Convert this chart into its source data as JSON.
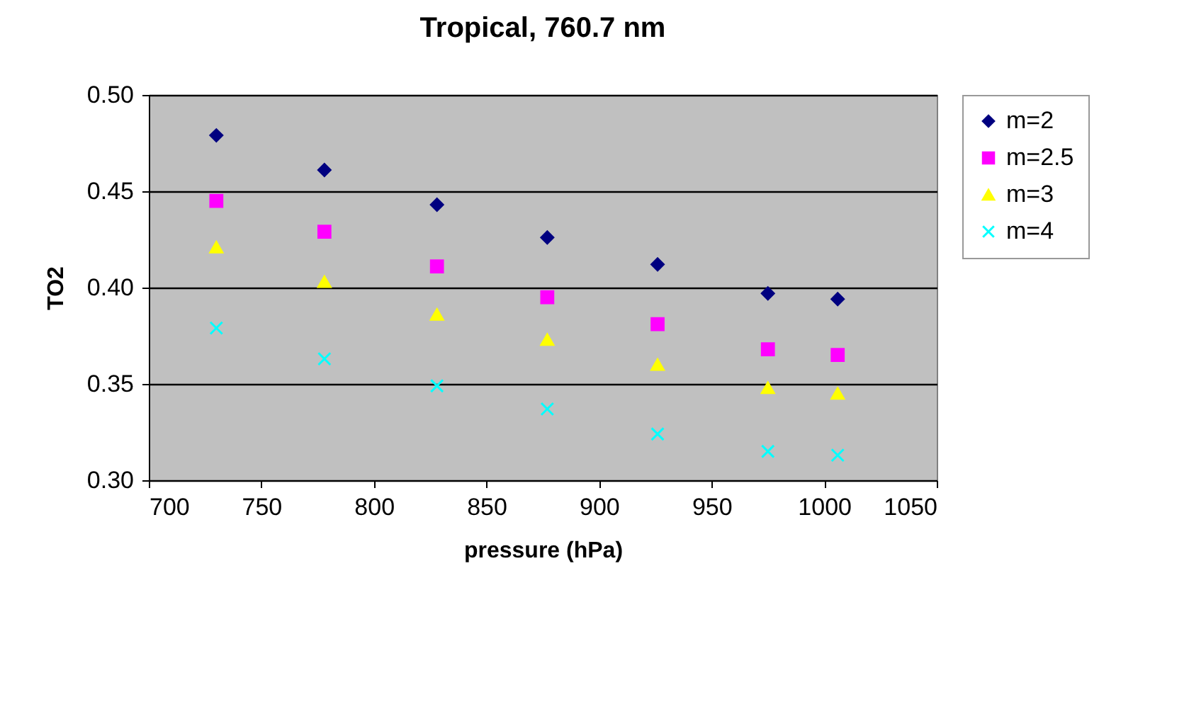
{
  "chart_data": {
    "type": "scatter",
    "title": "Tropical, 760.7 nm",
    "xlabel": "pressure (hPa)",
    "ylabel": "TO2",
    "x": [
      730,
      778,
      828,
      877,
      926,
      975,
      1006
    ],
    "series": [
      {
        "name": "m=2",
        "color": "#000080",
        "marker": "diamond",
        "values": [
          0.479,
          0.461,
          0.443,
          0.426,
          0.412,
          0.397,
          0.394
        ]
      },
      {
        "name": "m=2.5",
        "color": "#ff00ff",
        "marker": "square",
        "values": [
          0.445,
          0.429,
          0.411,
          0.395,
          0.381,
          0.368,
          0.365
        ]
      },
      {
        "name": "m=3",
        "color": "#ffff00",
        "marker": "triangle",
        "values": [
          0.421,
          0.403,
          0.386,
          0.373,
          0.36,
          0.348,
          0.345
        ]
      },
      {
        "name": "m=4",
        "color": "#00ffff",
        "marker": "cross",
        "values": [
          0.379,
          0.363,
          0.349,
          0.337,
          0.324,
          0.315,
          0.313
        ]
      }
    ],
    "xlim": [
      700,
      1050
    ],
    "xticks": [
      700,
      750,
      800,
      850,
      900,
      950,
      1000,
      1050
    ],
    "ylim": [
      0.3,
      0.5
    ],
    "yticks": [
      {
        "value": 0.3,
        "label": "0.30"
      },
      0.35,
      {
        "value": 0.4,
        "label": "0.40"
      },
      0.45,
      {
        "value": 0.5,
        "label": "0.50"
      }
    ],
    "grid": "y",
    "legend": "right"
  }
}
